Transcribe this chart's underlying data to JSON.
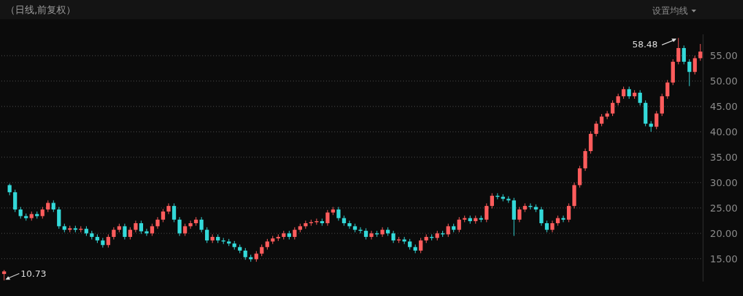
{
  "chart_data": {
    "type": "candlestick",
    "title": "（日线,前复权）",
    "annotations": [
      "58.48",
      "10.73",
      "设置均线"
    ],
    "ylim": [
      10.5,
      59.2
    ],
    "yticks": [
      {
        "value": 15,
        "label": "15.00"
      },
      {
        "value": 20,
        "label": "20.00"
      },
      {
        "value": 25,
        "label": "25.00"
      },
      {
        "value": 30,
        "label": "30.00"
      },
      {
        "value": 35,
        "label": "35.00"
      },
      {
        "value": 40,
        "label": "40.00"
      },
      {
        "value": 45,
        "label": "45.00"
      },
      {
        "value": 50,
        "label": "50.00"
      },
      {
        "value": 55,
        "label": "55.00"
      }
    ],
    "grid": "y",
    "tick_labels": "y",
    "categories": [
      null,
      null,
      null,
      null,
      null,
      null,
      null,
      null,
      null,
      null,
      null,
      null,
      null,
      null,
      null,
      null,
      null,
      null,
      null,
      null,
      null,
      null,
      null,
      null,
      null,
      null,
      null,
      null,
      null,
      null,
      null,
      null,
      null,
      null,
      null,
      null,
      null,
      null,
      null,
      null,
      null,
      null,
      null,
      null,
      null,
      null,
      null,
      null,
      null,
      null,
      null,
      null,
      null,
      null,
      null,
      null,
      null,
      null,
      null,
      null,
      null,
      null,
      null,
      null,
      null,
      null,
      null,
      null,
      null,
      null,
      null,
      null,
      null,
      null,
      null,
      null,
      null,
      null,
      null,
      null,
      null,
      null,
      null,
      null,
      null,
      null,
      null,
      null,
      null,
      null,
      null,
      null,
      null,
      null,
      null,
      null,
      null,
      null,
      null,
      null,
      null,
      null,
      null,
      null,
      null,
      null,
      null,
      null,
      null,
      null,
      null,
      null,
      null,
      null,
      null,
      null,
      null,
      null,
      null,
      null,
      null,
      null,
      null,
      null,
      null,
      null,
      null,
      null
    ],
    "ohlc": [
      [
        12.0,
        12.8,
        10.73,
        12.5
      ],
      [
        29.5,
        29.8,
        27.5,
        28.1
      ],
      [
        28.1,
        28.6,
        24.2,
        24.7
      ],
      [
        24.7,
        25.2,
        22.9,
        23.4
      ],
      [
        23.4,
        23.9,
        22.5,
        23.0
      ],
      [
        23.0,
        24.3,
        22.5,
        23.8
      ],
      [
        23.8,
        24.3,
        22.9,
        23.4
      ],
      [
        23.4,
        25.2,
        22.9,
        24.7
      ],
      [
        24.7,
        26.5,
        24.2,
        26.0
      ],
      [
        26.0,
        26.5,
        24.2,
        24.7
      ],
      [
        24.7,
        25.2,
        20.9,
        21.4
      ],
      [
        21.4,
        21.9,
        20.2,
        20.7
      ],
      [
        20.7,
        21.5,
        20.2,
        21.0
      ],
      [
        21.0,
        21.5,
        20.2,
        20.7
      ],
      [
        20.7,
        21.4,
        20.2,
        20.9
      ],
      [
        20.9,
        21.4,
        19.5,
        20.0
      ],
      [
        20.0,
        20.5,
        18.8,
        19.3
      ],
      [
        19.3,
        19.8,
        18.1,
        18.6
      ],
      [
        18.6,
        19.1,
        17.2,
        17.7
      ],
      [
        17.7,
        19.8,
        17.2,
        19.3
      ],
      [
        19.3,
        21.2,
        18.8,
        20.7
      ],
      [
        20.7,
        21.9,
        20.2,
        21.4
      ],
      [
        21.4,
        21.9,
        18.8,
        19.3
      ],
      [
        19.3,
        21.2,
        18.8,
        20.7
      ],
      [
        20.7,
        22.5,
        20.2,
        22.0
      ],
      [
        22.0,
        22.5,
        19.9,
        20.4
      ],
      [
        20.4,
        20.9,
        19.5,
        20.0
      ],
      [
        20.0,
        21.9,
        19.5,
        21.4
      ],
      [
        21.4,
        23.2,
        20.9,
        22.7
      ],
      [
        22.7,
        24.8,
        22.2,
        24.3
      ],
      [
        24.3,
        25.9,
        23.8,
        25.4
      ],
      [
        25.4,
        25.9,
        22.2,
        22.7
      ],
      [
        22.7,
        23.2,
        19.5,
        20.0
      ],
      [
        20.0,
        21.9,
        19.5,
        21.4
      ],
      [
        21.4,
        22.5,
        20.9,
        22.0
      ],
      [
        22.0,
        23.2,
        21.5,
        22.7
      ],
      [
        22.7,
        23.2,
        20.2,
        20.7
      ],
      [
        20.7,
        21.2,
        18.1,
        18.6
      ],
      [
        18.6,
        19.8,
        18.1,
        19.3
      ],
      [
        19.3,
        19.8,
        18.1,
        18.6
      ],
      [
        18.6,
        19.1,
        17.9,
        18.4
      ],
      [
        18.4,
        18.9,
        17.5,
        18.0
      ],
      [
        18.0,
        18.5,
        16.8,
        17.3
      ],
      [
        17.3,
        17.8,
        16.1,
        16.6
      ],
      [
        16.6,
        17.1,
        14.8,
        15.3
      ],
      [
        15.3,
        15.8,
        14.4,
        14.9
      ],
      [
        14.9,
        16.5,
        14.4,
        16.0
      ],
      [
        16.0,
        17.8,
        15.5,
        17.3
      ],
      [
        17.3,
        18.9,
        16.8,
        18.4
      ],
      [
        18.4,
        19.5,
        17.9,
        19.0
      ],
      [
        19.0,
        19.8,
        18.5,
        19.3
      ],
      [
        19.3,
        20.5,
        18.8,
        20.0
      ],
      [
        20.0,
        20.5,
        18.8,
        19.3
      ],
      [
        19.3,
        21.2,
        18.8,
        20.7
      ],
      [
        20.7,
        21.9,
        20.2,
        21.4
      ],
      [
        21.4,
        22.5,
        20.9,
        22.0
      ],
      [
        22.0,
        22.7,
        21.5,
        22.2
      ],
      [
        22.2,
        22.9,
        21.7,
        22.4
      ],
      [
        22.4,
        22.9,
        21.5,
        22.0
      ],
      [
        22.0,
        24.6,
        21.5,
        24.1
      ],
      [
        24.1,
        25.2,
        23.6,
        24.7
      ],
      [
        24.7,
        25.2,
        22.5,
        23.0
      ],
      [
        23.0,
        23.5,
        21.5,
        22.0
      ],
      [
        22.0,
        22.5,
        20.9,
        21.4
      ],
      [
        21.4,
        21.9,
        20.2,
        20.7
      ],
      [
        20.7,
        21.2,
        20.0,
        20.5
      ],
      [
        20.5,
        21.0,
        18.8,
        19.3
      ],
      [
        19.3,
        20.5,
        18.8,
        20.0
      ],
      [
        20.0,
        20.5,
        19.3,
        19.8
      ],
      [
        19.8,
        21.2,
        19.3,
        20.7
      ],
      [
        20.7,
        21.2,
        19.5,
        20.0
      ],
      [
        20.0,
        20.5,
        18.1,
        18.6
      ],
      [
        18.6,
        19.3,
        18.1,
        18.8
      ],
      [
        18.8,
        19.3,
        17.9,
        18.4
      ],
      [
        18.4,
        18.9,
        16.8,
        17.3
      ],
      [
        17.3,
        17.8,
        16.1,
        16.6
      ],
      [
        16.6,
        19.1,
        16.1,
        18.6
      ],
      [
        18.6,
        19.8,
        18.1,
        19.3
      ],
      [
        19.3,
        19.8,
        18.6,
        19.1
      ],
      [
        19.1,
        20.5,
        18.6,
        20.0
      ],
      [
        20.0,
        20.5,
        19.3,
        19.8
      ],
      [
        19.8,
        21.9,
        19.3,
        21.4
      ],
      [
        21.4,
        21.9,
        20.2,
        20.7
      ],
      [
        20.7,
        23.2,
        20.2,
        22.7
      ],
      [
        22.7,
        23.5,
        22.2,
        23.0
      ],
      [
        23.0,
        23.5,
        21.9,
        22.4
      ],
      [
        22.4,
        23.5,
        21.9,
        23.0
      ],
      [
        23.0,
        23.5,
        22.2,
        22.7
      ],
      [
        22.7,
        25.9,
        22.2,
        25.4
      ],
      [
        25.4,
        27.9,
        24.9,
        27.4
      ],
      [
        27.4,
        27.9,
        26.7,
        27.2
      ],
      [
        27.2,
        27.7,
        26.3,
        26.8
      ],
      [
        26.8,
        27.3,
        26.0,
        26.5
      ],
      [
        26.5,
        27.0,
        19.5,
        22.7
      ],
      [
        22.7,
        25.2,
        22.2,
        24.7
      ],
      [
        24.7,
        25.9,
        24.2,
        25.4
      ],
      [
        25.4,
        25.9,
        24.7,
        25.2
      ],
      [
        25.2,
        25.7,
        24.2,
        24.7
      ],
      [
        24.7,
        25.2,
        21.5,
        22.0
      ],
      [
        22.0,
        22.5,
        20.2,
        20.7
      ],
      [
        20.7,
        22.5,
        20.2,
        22.0
      ],
      [
        22.0,
        23.5,
        21.5,
        23.0
      ],
      [
        23.0,
        23.5,
        22.2,
        22.7
      ],
      [
        22.7,
        25.9,
        22.2,
        25.4
      ],
      [
        25.4,
        30.0,
        24.9,
        29.5
      ],
      [
        29.5,
        33.3,
        29.0,
        32.8
      ],
      [
        32.8,
        36.7,
        32.3,
        36.2
      ],
      [
        36.2,
        40.1,
        35.7,
        39.6
      ],
      [
        39.6,
        42.1,
        39.1,
        41.6
      ],
      [
        41.6,
        43.5,
        41.1,
        43.0
      ],
      [
        43.0,
        44.1,
        42.5,
        43.6
      ],
      [
        43.6,
        46.2,
        43.1,
        45.7
      ],
      [
        45.7,
        47.5,
        45.2,
        47.0
      ],
      [
        47.0,
        48.9,
        46.5,
        48.4
      ],
      [
        48.4,
        48.9,
        46.5,
        47.0
      ],
      [
        47.0,
        48.2,
        46.5,
        47.7
      ],
      [
        47.7,
        48.2,
        45.2,
        45.7
      ],
      [
        45.7,
        46.2,
        41.1,
        41.6
      ],
      [
        41.6,
        42.1,
        40.0,
        41.0
      ],
      [
        41.0,
        44.1,
        40.5,
        43.6
      ],
      [
        43.6,
        47.5,
        43.1,
        47.0
      ],
      [
        47.0,
        50.2,
        46.5,
        49.7
      ],
      [
        49.7,
        54.3,
        49.2,
        53.8
      ],
      [
        53.8,
        58.48,
        53.3,
        56.5
      ],
      [
        56.5,
        57.0,
        53.3,
        53.8
      ],
      [
        53.8,
        54.3,
        49.0,
        51.8
      ],
      [
        51.8,
        55.0,
        51.3,
        54.5
      ],
      [
        54.5,
        57.3,
        54.0,
        55.8
      ]
    ],
    "colors": [
      "#ff5c5c",
      "#33d9d9",
      "#33d9d9",
      "#33d9d9",
      "#33d9d9",
      "#ff5c5c",
      "#33d9d9",
      "#ff5c5c",
      "#ff5c5c",
      "#33d9d9",
      "#33d9d9",
      "#33d9d9",
      "#ff5c5c",
      "#33d9d9",
      "#ff5c5c",
      "#33d9d9",
      "#33d9d9",
      "#33d9d9",
      "#33d9d9",
      "#ff5c5c",
      "#ff5c5c",
      "#ff5c5c",
      "#33d9d9",
      "#ff5c5c",
      "#ff5c5c",
      "#33d9d9",
      "#33d9d9",
      "#ff5c5c",
      "#ff5c5c",
      "#ff5c5c",
      "#ff5c5c",
      "#33d9d9",
      "#33d9d9",
      "#ff5c5c",
      "#ff5c5c",
      "#ff5c5c",
      "#33d9d9",
      "#33d9d9",
      "#ff5c5c",
      "#33d9d9",
      "#33d9d9",
      "#33d9d9",
      "#33d9d9",
      "#33d9d9",
      "#33d9d9",
      "#33d9d9",
      "#ff5c5c",
      "#ff5c5c",
      "#ff5c5c",
      "#ff5c5c",
      "#ff5c5c",
      "#ff5c5c",
      "#33d9d9",
      "#ff5c5c",
      "#ff5c5c",
      "#ff5c5c",
      "#ff5c5c",
      "#ff5c5c",
      "#33d9d9",
      "#ff5c5c",
      "#ff5c5c",
      "#33d9d9",
      "#33d9d9",
      "#33d9d9",
      "#33d9d9",
      "#33d9d9",
      "#33d9d9",
      "#ff5c5c",
      "#33d9d9",
      "#ff5c5c",
      "#33d9d9",
      "#33d9d9",
      "#ff5c5c",
      "#33d9d9",
      "#33d9d9",
      "#33d9d9",
      "#ff5c5c",
      "#ff5c5c",
      "#33d9d9",
      "#ff5c5c",
      "#33d9d9",
      "#ff5c5c",
      "#33d9d9",
      "#ff5c5c",
      "#ff5c5c",
      "#33d9d9",
      "#ff5c5c",
      "#33d9d9",
      "#ff5c5c",
      "#ff5c5c",
      "#33d9d9",
      "#33d9d9",
      "#33d9d9",
      "#33d9d9",
      "#ff5c5c",
      "#ff5c5c",
      "#33d9d9",
      "#33d9d9",
      "#33d9d9",
      "#33d9d9",
      "#ff5c5c",
      "#ff5c5c",
      "#33d9d9",
      "#ff5c5c",
      "#ff5c5c",
      "#ff5c5c",
      "#ff5c5c",
      "#ff5c5c",
      "#ff5c5c",
      "#ff5c5c",
      "#ff5c5c",
      "#ff5c5c",
      "#ff5c5c",
      "#ff5c5c",
      "#33d9d9",
      "#ff5c5c",
      "#33d9d9",
      "#33d9d9",
      "#33d9d9",
      "#ff5c5c",
      "#ff5c5c",
      "#ff5c5c",
      "#ff5c5c",
      "#ff5c5c",
      "#33d9d9",
      "#33d9d9",
      "#ff5c5c",
      "#ff5c5c"
    ]
  }
}
